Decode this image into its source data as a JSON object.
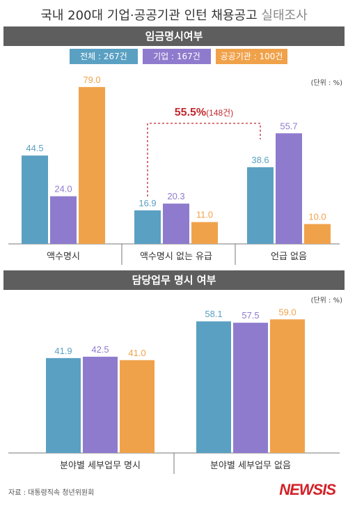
{
  "title": {
    "main": "국내 200대 기업·공공기관 인턴 채용공고",
    "sub": "실태조사"
  },
  "colors": {
    "total": "#5aa0c2",
    "company": "#8f7bcd",
    "public": "#f0a24a",
    "band": "#5e5e5e",
    "brand": "#d42027"
  },
  "legend": [
    {
      "label": "전체 : 267건",
      "color": "#5aa0c2"
    },
    {
      "label": "기업 : 167건",
      "color": "#8f7bcd"
    },
    {
      "label": "공공기관 : 100건",
      "color": "#f0a24a"
    }
  ],
  "unit": "(단위 : %)",
  "annotation": {
    "value": "55.5%",
    "detail": "(148건)"
  },
  "source": "자료 : 대통령직속 청년위원회",
  "brand": "NEWSIS",
  "chart_data": [
    {
      "type": "bar",
      "title": "임금명시여부",
      "categories": [
        "액수명시",
        "액수명시 없는 유급",
        "언급 없음"
      ],
      "series": [
        {
          "name": "전체 : 267건",
          "values": [
            44.5,
            16.9,
            38.6
          ]
        },
        {
          "name": "기업 : 167건",
          "values": [
            24.0,
            20.3,
            55.7
          ]
        },
        {
          "name": "공공기관 : 100건",
          "values": [
            79.0,
            11.0,
            10.0
          ]
        }
      ],
      "value_labels": [
        [
          "44.5",
          "16.9",
          "38.6"
        ],
        [
          "24.0",
          "20.3",
          "55.7"
        ],
        [
          "79.0",
          "11.0",
          "10.0"
        ]
      ],
      "ylim": [
        0,
        100
      ],
      "grid": false,
      "legend_position": "top"
    },
    {
      "type": "bar",
      "title": "담당업무 명시 여부",
      "categories": [
        "분야별 세부업무 명시",
        "분야별 세부업무 없음"
      ],
      "series": [
        {
          "name": "전체 : 267건",
          "values": [
            41.9,
            58.1
          ]
        },
        {
          "name": "기업 : 167건",
          "values": [
            42.5,
            57.5
          ]
        },
        {
          "name": "공공기관 : 100건",
          "values": [
            41.0,
            59.0
          ]
        }
      ],
      "value_labels": [
        [
          "41.9",
          "58.1"
        ],
        [
          "42.5",
          "57.5"
        ],
        [
          "41.0",
          "59.0"
        ]
      ],
      "ylim": [
        0,
        100
      ],
      "grid": false
    }
  ]
}
